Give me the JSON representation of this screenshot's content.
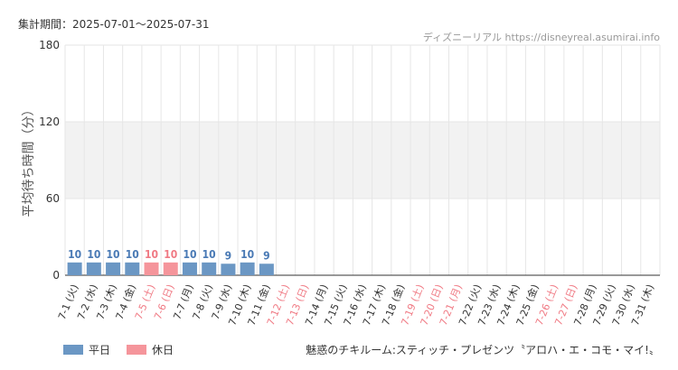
{
  "header": {
    "period": "集計期間：2025-07-01～2025-07-31",
    "source": "ディズニーリアル https://disneyreal.asumirai.info"
  },
  "footer": {
    "attraction": "魅惑のチキルーム:スティッチ・プレゼンツ〝アロハ・エ・コモ・マイ!〟"
  },
  "legend": [
    {
      "label": "平日",
      "color": "#6b97c4"
    },
    {
      "label": "休日",
      "color": "#f5959b"
    }
  ],
  "chart_data": {
    "type": "bar",
    "ylabel": "平均待ち時間（分）",
    "ylim": [
      0,
      180
    ],
    "yticks": [
      0,
      60,
      120,
      180
    ],
    "categories": [
      "7-1 (火)",
      "7-2 (水)",
      "7-3 (木)",
      "7-4 (金)",
      "7-5 (土)",
      "7-6 (日)",
      "7-7 (月)",
      "7-8 (火)",
      "7-9 (水)",
      "7-10 (木)",
      "7-11 (金)",
      "7-12 (土)",
      "7-13 (日)",
      "7-14 (月)",
      "7-15 (火)",
      "7-16 (水)",
      "7-17 (木)",
      "7-18 (金)",
      "7-19 (土)",
      "7-20 (日)",
      "7-21 (月)",
      "7-22 (火)",
      "7-23 (水)",
      "7-24 (木)",
      "7-25 (金)",
      "7-26 (土)",
      "7-27 (日)",
      "7-28 (月)",
      "7-29 (火)",
      "7-30 (水)",
      "7-31 (木)"
    ],
    "holiday": [
      false,
      false,
      false,
      false,
      true,
      true,
      false,
      false,
      false,
      false,
      false,
      true,
      true,
      false,
      false,
      false,
      false,
      false,
      true,
      true,
      true,
      false,
      false,
      false,
      false,
      true,
      true,
      false,
      false,
      false,
      false
    ],
    "values": [
      10,
      10,
      10,
      10,
      10,
      10,
      10,
      10,
      9,
      10,
      9,
      null,
      null,
      null,
      null,
      null,
      null,
      null,
      null,
      null,
      null,
      null,
      null,
      null,
      null,
      null,
      null,
      null,
      null,
      null,
      null
    ],
    "colors": {
      "weekday": "#6b97c4",
      "holiday": "#f5959b",
      "weekday_label": "#4a7ab5",
      "holiday_label": "#f07a84",
      "band": "#f2f2f2",
      "grid": "#e6e6e6",
      "axis": "#333333"
    },
    "grid": true
  }
}
